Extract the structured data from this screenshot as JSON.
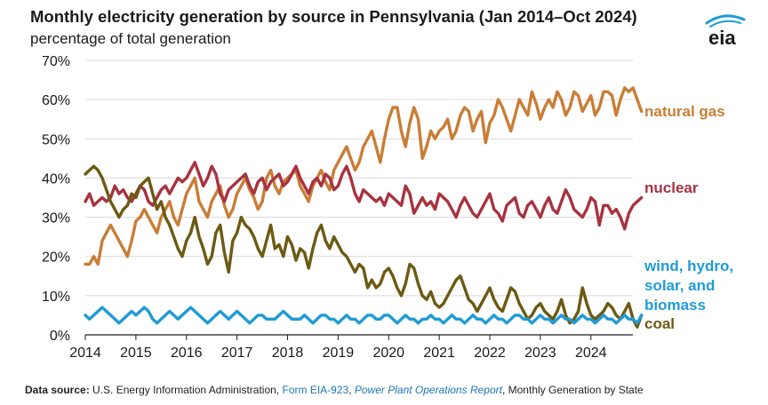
{
  "title": "Monthly electricity generation by source in Pennsylvania (Jan 2014–Oct 2024)",
  "subtitle": "percentage of total generation",
  "logo_text": "eia",
  "source": {
    "label": "Data source:",
    "org": "U.S. Energy Information Administration,",
    "link1": "Form EIA-923",
    "sep": ",",
    "link2": "Power Plant Operations Report",
    "rest": ", Monthly Generation by State"
  },
  "chart_data": {
    "type": "line",
    "xlabel": "",
    "ylabel": "",
    "xlim": [
      2014,
      2024.83
    ],
    "ylim": [
      0,
      70
    ],
    "x_ticks": [
      "2014",
      "2015",
      "2016",
      "2017",
      "2018",
      "2019",
      "2020",
      "2021",
      "2022",
      "2023",
      "2024"
    ],
    "y_ticks": [
      "0%",
      "10%",
      "20%",
      "30%",
      "40%",
      "50%",
      "60%",
      "70%"
    ],
    "grid": "horizontal",
    "legend": "inline-right",
    "x_start": "2014-01",
    "series": [
      {
        "name": "natural gas",
        "color": "#c97d35",
        "values": [
          18,
          18,
          20,
          18,
          24,
          26,
          28,
          26,
          24,
          22,
          20,
          24,
          29,
          30,
          32,
          30,
          28,
          26,
          30,
          32,
          34,
          30,
          28,
          32,
          36,
          38,
          40,
          34,
          32,
          30,
          34,
          36,
          38,
          33,
          30,
          32,
          36,
          38,
          40,
          37,
          35,
          32,
          34,
          40,
          42,
          38,
          36,
          39,
          40,
          41,
          42,
          38,
          36,
          34,
          38,
          40,
          42,
          39,
          37,
          42,
          44,
          46,
          48,
          45,
          42,
          44,
          48,
          50,
          52,
          48,
          44,
          50,
          55,
          58,
          58,
          52,
          48,
          54,
          58,
          55,
          45,
          48,
          52,
          50,
          52,
          53,
          55,
          50,
          52,
          56,
          58,
          57,
          52,
          55,
          57,
          49,
          54,
          56,
          60,
          58,
          55,
          52,
          56,
          60,
          58,
          56,
          62,
          59,
          55,
          58,
          60,
          58,
          62,
          60,
          56,
          58,
          62,
          61,
          57,
          59,
          61,
          56,
          58,
          62,
          62,
          61,
          56,
          60,
          63,
          62,
          63,
          60,
          57
        ]
      },
      {
        "name": "nuclear",
        "color": "#a83240",
        "values": [
          34,
          36,
          33,
          34,
          35,
          34,
          35,
          38,
          36,
          37,
          35,
          34,
          36,
          38,
          37,
          34,
          33,
          35,
          37,
          38,
          36,
          38,
          40,
          39,
          40,
          42,
          44,
          41,
          38,
          40,
          43,
          41,
          36,
          34,
          37,
          38,
          39,
          40,
          41,
          38,
          36,
          39,
          40,
          37,
          39,
          40,
          41,
          38,
          39,
          41,
          43,
          40,
          38,
          36,
          39,
          40,
          38,
          41,
          40,
          37,
          38,
          41,
          43,
          40,
          36,
          34,
          37,
          36,
          35,
          34,
          35,
          33,
          36,
          35,
          34,
          33,
          38,
          36,
          31,
          33,
          35,
          33,
          34,
          32,
          36,
          35,
          34,
          32,
          30,
          33,
          35,
          33,
          31,
          30,
          32,
          34,
          36,
          32,
          31,
          29,
          33,
          34,
          35,
          31,
          30,
          33,
          34,
          32,
          30,
          33,
          35,
          32,
          31,
          34,
          37,
          35,
          32,
          31,
          30,
          32,
          35,
          34,
          28,
          33,
          33,
          31,
          32,
          30,
          27,
          31,
          33,
          34,
          35
        ]
      },
      {
        "name": "coal",
        "color": "#6b5a12",
        "values": [
          41,
          42,
          43,
          42,
          40,
          37,
          34,
          32,
          30,
          32,
          33,
          36,
          35,
          38,
          39,
          40,
          36,
          32,
          34,
          30,
          28,
          25,
          22,
          20,
          24,
          26,
          30,
          25,
          22,
          18,
          20,
          26,
          28,
          21,
          16,
          24,
          26,
          30,
          28,
          27,
          25,
          22,
          20,
          24,
          28,
          22,
          23,
          20,
          25,
          23,
          19,
          22,
          21,
          17,
          22,
          26,
          28,
          24,
          22,
          25,
          23,
          21,
          20,
          18,
          16,
          18,
          17,
          12,
          14,
          12,
          13,
          16,
          17,
          15,
          12,
          10,
          13,
          18,
          17,
          13,
          10,
          9,
          11,
          8,
          7,
          8,
          10,
          12,
          14,
          15,
          12,
          9,
          8,
          6,
          8,
          10,
          12,
          9,
          7,
          6,
          9,
          12,
          11,
          8,
          6,
          4,
          5,
          7,
          8,
          6,
          5,
          4,
          6,
          9,
          5,
          3,
          4,
          6,
          12,
          8,
          5,
          4,
          5,
          6,
          8,
          7,
          5,
          4,
          6,
          8,
          4,
          2,
          5
        ]
      },
      {
        "name": "wind, hydro, solar, and biomass",
        "color": "#1f9bd7",
        "values": [
          5,
          4,
          5,
          6,
          7,
          6,
          5,
          4,
          3,
          4,
          5,
          6,
          5,
          6,
          7,
          6,
          4,
          3,
          4,
          5,
          6,
          5,
          4,
          5,
          6,
          7,
          6,
          5,
          4,
          3,
          4,
          5,
          6,
          5,
          4,
          5,
          6,
          5,
          4,
          3,
          4,
          5,
          5,
          4,
          4,
          4,
          5,
          6,
          5,
          4,
          4,
          4,
          5,
          4,
          3,
          4,
          5,
          5,
          4,
          4,
          3,
          4,
          5,
          4,
          4,
          3,
          4,
          5,
          5,
          4,
          4,
          5,
          5,
          4,
          3,
          4,
          5,
          4,
          4,
          3,
          4,
          4,
          5,
          4,
          4,
          3,
          4,
          5,
          4,
          4,
          3,
          4,
          5,
          4,
          4,
          3,
          4,
          5,
          4,
          4,
          3,
          4,
          5,
          5,
          4,
          4,
          3,
          4,
          5,
          4,
          4,
          3,
          4,
          5,
          4,
          4,
          3,
          4,
          5,
          4,
          4,
          3,
          4,
          5,
          4,
          4,
          3,
          4,
          5,
          4,
          4,
          3,
          5
        ]
      }
    ],
    "series_labels": [
      {
        "series": "natural gas",
        "lines": [
          "natural gas"
        ]
      },
      {
        "series": "nuclear",
        "lines": [
          "nuclear"
        ]
      },
      {
        "series": "wind, hydro, solar, and biomass",
        "lines": [
          "wind, hydro,",
          "solar, and",
          "biomass"
        ]
      },
      {
        "series": "coal",
        "lines": [
          "coal"
        ]
      }
    ]
  }
}
